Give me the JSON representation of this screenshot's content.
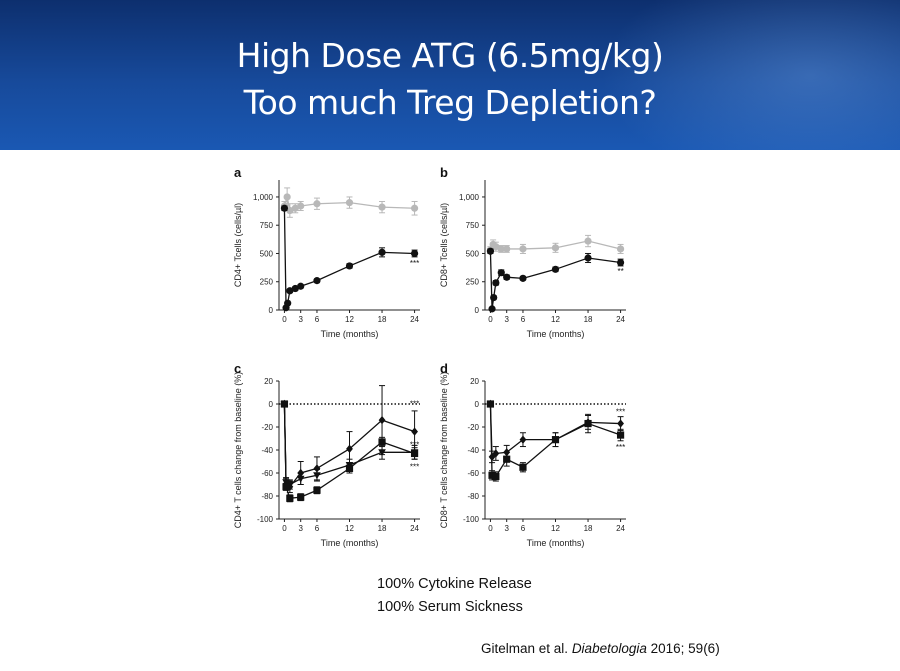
{
  "slide": {
    "title_line1": "High Dose ATG (6.5mg/kg)",
    "title_line2": "Too much Treg Depletion?",
    "note1": "100% Cytokine Release",
    "note2": "100% Serum Sickness",
    "citation_authors": "Gitelman et al.",
    "citation_journal": "Diabetologia",
    "citation_details": "2016; 59(6)",
    "colors": {
      "banner": "#174a9b",
      "title": "#ffffff",
      "dark_series": "#111111",
      "grey_series": "#b8b8b8"
    }
  },
  "chart_data": [
    {
      "panel": "a",
      "type": "line",
      "xlabel": "Time (months)",
      "ylabel": "CD4+ Tcells (cells/µl)",
      "xticks": [
        0,
        3,
        6,
        12,
        18,
        24
      ],
      "yticks": [
        0,
        250,
        500,
        750,
        1000
      ],
      "ytick_labels": [
        "0",
        "250",
        "500",
        "750",
        "1,000"
      ],
      "xlim": [
        -1,
        25
      ],
      "ylim": [
        0,
        1150
      ],
      "series": [
        {
          "name": "grey",
          "color": "#b8b8b8",
          "marker": "circle",
          "x": [
            0,
            0.5,
            1,
            2,
            3,
            6,
            12,
            18,
            24
          ],
          "y": [
            920,
            1000,
            880,
            900,
            920,
            940,
            950,
            910,
            900
          ],
          "err": [
            40,
            80,
            60,
            40,
            40,
            50,
            50,
            50,
            60
          ]
        },
        {
          "name": "dark",
          "color": "#111111",
          "marker": "circle",
          "x": [
            0,
            0.3,
            0.6,
            1,
            2,
            3,
            6,
            12,
            18,
            24
          ],
          "y": [
            900,
            20,
            60,
            170,
            190,
            210,
            260,
            390,
            510,
            500
          ],
          "err": [
            20,
            10,
            10,
            15,
            15,
            15,
            15,
            20,
            40,
            30
          ]
        }
      ],
      "annotations": [
        {
          "x": 24,
          "y": 390,
          "text": "***"
        }
      ]
    },
    {
      "panel": "b",
      "type": "line",
      "xlabel": "Time (months)",
      "ylabel": "CD8+ Tcells (cells/µl)",
      "xticks": [
        0,
        3,
        6,
        12,
        18,
        24
      ],
      "yticks": [
        0,
        250,
        500,
        750,
        1000
      ],
      "ytick_labels": [
        "0",
        "250",
        "500",
        "750",
        "1,000"
      ],
      "xlim": [
        -1,
        25
      ],
      "ylim": [
        0,
        1150
      ],
      "series": [
        {
          "name": "grey",
          "color": "#b8b8b8",
          "marker": "circle",
          "x": [
            0,
            0.5,
            1,
            2,
            3,
            6,
            12,
            18,
            24
          ],
          "y": [
            530,
            580,
            560,
            540,
            540,
            540,
            550,
            610,
            540
          ],
          "err": [
            30,
            40,
            40,
            30,
            30,
            40,
            40,
            50,
            40
          ]
        },
        {
          "name": "dark",
          "color": "#111111",
          "marker": "circle",
          "x": [
            0,
            0.3,
            0.6,
            1,
            2,
            3,
            6,
            12,
            18,
            24
          ],
          "y": [
            520,
            10,
            110,
            240,
            330,
            290,
            280,
            360,
            460,
            420
          ],
          "err": [
            20,
            10,
            15,
            20,
            25,
            20,
            15,
            20,
            40,
            30
          ]
        }
      ],
      "annotations": [
        {
          "x": 24,
          "y": 320,
          "text": "**"
        }
      ]
    },
    {
      "panel": "c",
      "type": "line",
      "xlabel": "Time (months)",
      "ylabel": "CD4+ T cells change from baseline (%)",
      "xticks": [
        0,
        3,
        6,
        12,
        18,
        24
      ],
      "yticks": [
        -100,
        -80,
        -60,
        -40,
        -20,
        0,
        20
      ],
      "xlim": [
        -1,
        25
      ],
      "ylim": [
        -100,
        20
      ],
      "baseline": 0,
      "series": [
        {
          "name": "diamond",
          "color": "#111111",
          "marker": "diamond",
          "x": [
            0,
            0.3,
            1,
            3,
            6,
            12,
            18,
            24
          ],
          "y": [
            0,
            -70,
            -72,
            -60,
            -56,
            -39,
            -14,
            -24
          ],
          "err": [
            0,
            5,
            5,
            10,
            10,
            15,
            30,
            18
          ]
        },
        {
          "name": "triangle",
          "color": "#111111",
          "marker": "triangle",
          "x": [
            0,
            0.3,
            1,
            3,
            6,
            12,
            18,
            24
          ],
          "y": [
            0,
            -68,
            -70,
            -65,
            -62,
            -53,
            -42,
            -42
          ],
          "err": [
            0,
            4,
            4,
            5,
            5,
            5,
            6,
            6
          ]
        },
        {
          "name": "square",
          "color": "#111111",
          "marker": "square",
          "x": [
            0,
            0.3,
            1,
            3,
            6,
            12,
            18,
            24
          ],
          "y": [
            0,
            -72,
            -82,
            -81,
            -75,
            -56,
            -33,
            -43
          ],
          "err": [
            0,
            3,
            3,
            3,
            3,
            4,
            4,
            5
          ]
        }
      ],
      "annotations": [
        {
          "x": 24,
          "y": -2,
          "text": "***"
        },
        {
          "x": 24,
          "y": -38,
          "text": "***"
        },
        {
          "x": 24,
          "y": -57,
          "text": "***"
        }
      ]
    },
    {
      "panel": "d",
      "type": "line",
      "xlabel": "Time (months)",
      "ylabel": "CD8+ T cells change from baseline (%)",
      "xticks": [
        0,
        3,
        6,
        12,
        18,
        24
      ],
      "yticks": [
        -100,
        -80,
        -60,
        -40,
        -20,
        0,
        20
      ],
      "xlim": [
        -1,
        25
      ],
      "ylim": [
        -100,
        20
      ],
      "baseline": 0,
      "series": [
        {
          "name": "diamond",
          "color": "#111111",
          "marker": "diamond",
          "x": [
            0,
            0.3,
            1,
            3,
            6,
            12,
            18,
            24
          ],
          "y": [
            0,
            -46,
            -43,
            -42,
            -31,
            -31,
            -16,
            -17
          ],
          "err": [
            0,
            5,
            6,
            6,
            6,
            6,
            6,
            6
          ]
        },
        {
          "name": "square",
          "color": "#111111",
          "marker": "square",
          "x": [
            0,
            0.3,
            1,
            3,
            6,
            12,
            18,
            24
          ],
          "y": [
            0,
            -62,
            -63,
            -48,
            -55,
            -31,
            -17,
            -27
          ],
          "err": [
            0,
            4,
            4,
            6,
            4,
            6,
            8,
            5
          ]
        }
      ],
      "annotations": [
        {
          "x": 24,
          "y": -9,
          "text": "***"
        },
        {
          "x": 24,
          "y": -40,
          "text": "***"
        }
      ]
    }
  ]
}
